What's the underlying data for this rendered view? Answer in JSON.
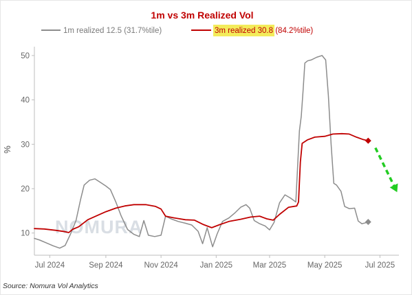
{
  "chart_data": {
    "type": "line",
    "title": "1m vs 3m Realized Vol",
    "ylabel": "%",
    "xlabel": "",
    "ylim": [
      5,
      52
    ],
    "yticks": [
      10,
      20,
      30,
      40,
      50
    ],
    "x_range": [
      "2024-06-14",
      "2025-07-22"
    ],
    "xticks": [
      {
        "date": "2024-07-01",
        "label": "Jul 2024"
      },
      {
        "date": "2024-09-01",
        "label": "Sep 2024"
      },
      {
        "date": "2024-11-01",
        "label": "Nov 2024"
      },
      {
        "date": "2025-01-01",
        "label": "Jan 2025"
      },
      {
        "date": "2025-03-01",
        "label": "Mar 2025"
      },
      {
        "date": "2025-05-01",
        "label": "May 2025"
      },
      {
        "date": "2025-07-01",
        "label": "Jul 2025"
      }
    ],
    "grid": false,
    "legend_position": "top",
    "series": [
      {
        "name": "1m realized 12.5 (31.7%tile)",
        "color": "#8c8c8c",
        "points": [
          [
            "2024-06-14",
            8.8
          ],
          [
            "2024-06-20",
            8.4
          ],
          [
            "2024-06-27",
            7.8
          ],
          [
            "2024-07-05",
            7.1
          ],
          [
            "2024-07-12",
            6.6
          ],
          [
            "2024-07-18",
            7.2
          ],
          [
            "2024-07-24",
            9.8
          ],
          [
            "2024-07-30",
            12.8
          ],
          [
            "2024-08-04",
            17.5
          ],
          [
            "2024-08-08",
            20.8
          ],
          [
            "2024-08-14",
            21.9
          ],
          [
            "2024-08-20",
            22.2
          ],
          [
            "2024-08-26",
            21.4
          ],
          [
            "2024-09-01",
            20.6
          ],
          [
            "2024-09-06",
            19.8
          ],
          [
            "2024-09-12",
            17.0
          ],
          [
            "2024-09-18",
            13.8
          ],
          [
            "2024-09-25",
            10.8
          ],
          [
            "2024-10-02",
            9.7
          ],
          [
            "2024-10-08",
            9.2
          ],
          [
            "2024-10-13",
            12.8
          ],
          [
            "2024-10-18",
            9.5
          ],
          [
            "2024-10-25",
            9.2
          ],
          [
            "2024-11-01",
            9.5
          ],
          [
            "2024-11-06",
            13.8
          ],
          [
            "2024-11-12",
            13.2
          ],
          [
            "2024-11-20",
            12.6
          ],
          [
            "2024-11-28",
            12.2
          ],
          [
            "2024-12-05",
            11.8
          ],
          [
            "2024-12-12",
            10.4
          ],
          [
            "2024-12-17",
            7.6
          ],
          [
            "2024-12-22",
            11.2
          ],
          [
            "2024-12-28",
            6.9
          ],
          [
            "2025-01-02",
            9.8
          ],
          [
            "2025-01-08",
            12.6
          ],
          [
            "2025-01-15",
            13.4
          ],
          [
            "2025-01-22",
            14.6
          ],
          [
            "2025-01-28",
            15.8
          ],
          [
            "2025-02-03",
            16.4
          ],
          [
            "2025-02-07",
            15.6
          ],
          [
            "2025-02-12",
            12.8
          ],
          [
            "2025-02-18",
            12.1
          ],
          [
            "2025-02-24",
            11.6
          ],
          [
            "2025-03-01",
            10.7
          ],
          [
            "2025-03-06",
            12.4
          ],
          [
            "2025-03-12",
            16.8
          ],
          [
            "2025-03-18",
            18.6
          ],
          [
            "2025-03-24",
            17.9
          ],
          [
            "2025-03-30",
            17.0
          ],
          [
            "2025-04-03",
            33.0
          ],
          [
            "2025-04-05",
            36.3
          ],
          [
            "2025-04-07",
            42.0
          ],
          [
            "2025-04-09",
            48.3
          ],
          [
            "2025-04-12",
            48.8
          ],
          [
            "2025-04-16",
            49.0
          ],
          [
            "2025-04-22",
            49.6
          ],
          [
            "2025-04-28",
            50.0
          ],
          [
            "2025-05-02",
            49.0
          ],
          [
            "2025-05-05",
            41.0
          ],
          [
            "2025-05-08",
            30.0
          ],
          [
            "2025-05-11",
            21.2
          ],
          [
            "2025-05-14",
            20.8
          ],
          [
            "2025-05-19",
            19.4
          ],
          [
            "2025-05-23",
            16.0
          ],
          [
            "2025-05-28",
            15.5
          ],
          [
            "2025-06-03",
            15.6
          ],
          [
            "2025-06-07",
            12.7
          ],
          [
            "2025-06-11",
            12.1
          ],
          [
            "2025-06-15",
            12.3
          ],
          [
            "2025-06-18",
            12.5
          ]
        ]
      },
      {
        "name": "3m realized 30.8 (84.2%tile)",
        "color": "#c00000",
        "highlight": "#f3ec5b",
        "points": [
          [
            "2024-06-14",
            11.0
          ],
          [
            "2024-06-25",
            10.9
          ],
          [
            "2024-07-08",
            10.6
          ],
          [
            "2024-07-18",
            10.3
          ],
          [
            "2024-07-22",
            10.1
          ],
          [
            "2024-07-26",
            10.8
          ],
          [
            "2024-08-02",
            11.4
          ],
          [
            "2024-08-12",
            13.0
          ],
          [
            "2024-08-22",
            13.9
          ],
          [
            "2024-09-01",
            14.8
          ],
          [
            "2024-09-12",
            15.6
          ],
          [
            "2024-09-22",
            16.1
          ],
          [
            "2024-10-02",
            16.4
          ],
          [
            "2024-10-15",
            16.4
          ],
          [
            "2024-10-26",
            16.0
          ],
          [
            "2024-11-01",
            15.4
          ],
          [
            "2024-11-06",
            13.8
          ],
          [
            "2024-11-16",
            13.4
          ],
          [
            "2024-11-28",
            13.0
          ],
          [
            "2024-12-08",
            12.9
          ],
          [
            "2024-12-18",
            11.9
          ],
          [
            "2024-12-27",
            11.2
          ],
          [
            "2025-01-05",
            11.9
          ],
          [
            "2025-01-15",
            12.6
          ],
          [
            "2025-01-28",
            13.1
          ],
          [
            "2025-02-08",
            13.6
          ],
          [
            "2025-02-18",
            13.8
          ],
          [
            "2025-02-26",
            13.2
          ],
          [
            "2025-03-05",
            12.9
          ],
          [
            "2025-03-12",
            14.2
          ],
          [
            "2025-03-22",
            15.8
          ],
          [
            "2025-03-31",
            16.1
          ],
          [
            "2025-04-02",
            17.0
          ],
          [
            "2025-04-04",
            26.0
          ],
          [
            "2025-04-06",
            30.2
          ],
          [
            "2025-04-12",
            31.0
          ],
          [
            "2025-04-20",
            31.6
          ],
          [
            "2025-05-01",
            31.8
          ],
          [
            "2025-05-10",
            32.3
          ],
          [
            "2025-05-20",
            32.4
          ],
          [
            "2025-05-28",
            32.3
          ],
          [
            "2025-06-05",
            31.6
          ],
          [
            "2025-06-12",
            31.1
          ],
          [
            "2025-06-18",
            30.8
          ]
        ]
      }
    ],
    "annotations": [
      {
        "type": "marker",
        "series": "3m realized 30.8 (84.2%tile)",
        "date": "2025-06-18",
        "value": 30.8,
        "shape": "diamond",
        "color": "#c00000"
      },
      {
        "type": "marker",
        "series": "1m realized 12.5 (31.7%tile)",
        "date": "2025-06-18",
        "value": 12.5,
        "shape": "diamond",
        "color": "#8c8c8c"
      },
      {
        "type": "arrow",
        "style": "dashed",
        "color": "#22cc22",
        "from": {
          "date": "2025-06-26",
          "value": 29.2
        },
        "to": {
          "date": "2025-07-20",
          "value": 19.2
        }
      }
    ]
  },
  "source": "Source: Nomura Vol Analytics",
  "watermark": "NOMURA"
}
